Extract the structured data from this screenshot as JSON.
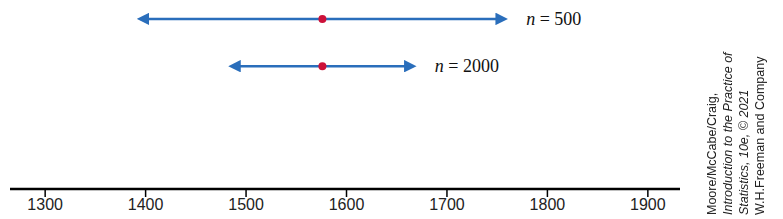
{
  "chart_data": {
    "type": "interval",
    "series": [
      {
        "name": "n = 500",
        "low": 1395,
        "center": 1576,
        "high": 1757
      },
      {
        "name": "n = 2000",
        "low": 1486,
        "center": 1576,
        "high": 1666
      }
    ],
    "color": "#2a6ebb",
    "xlim": [
      1265,
      1932
    ],
    "xticks": [
      1300,
      1400,
      1500,
      1600,
      1700,
      1800,
      1900
    ],
    "annotations": [
      "Moore/McCabe/Craig,",
      "Introduction to the Practice of",
      "Statistics, 10e, © 2021",
      "W.H.Freeman and Company"
    ]
  }
}
